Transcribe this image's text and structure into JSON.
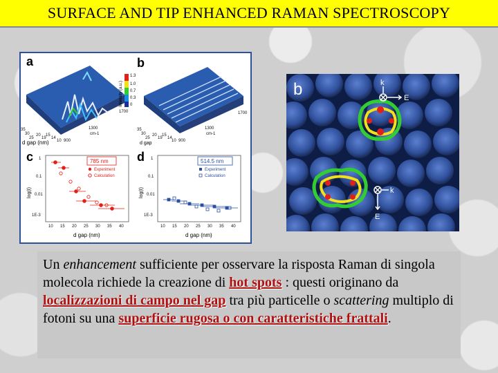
{
  "title": "SURFACE AND TIP ENHANCED RAMAN SPECTROSCOPY",
  "left_figure": {
    "panel_a": "a",
    "panel_b": "b",
    "panel_c": "c",
    "panel_d": "d",
    "colorbar_label": "Intensity (a.u.)",
    "colorbar_ticks": [
      "1.3",
      "1.0",
      "0.7",
      "0.3",
      "0"
    ],
    "surface_x_ticks_a": [
      "35",
      "30",
      "25",
      "20",
      "19",
      "15",
      "14",
      "10",
      "900"
    ],
    "surface_y_ticks_a": [
      "1700",
      "1300"
    ],
    "surface_unit_a": "cm-1",
    "surface_dgap_a": "d gap (nm)",
    "surface_x_ticks_b": [
      "35",
      "30",
      "25",
      "20",
      "19",
      "15",
      "14",
      "10",
      "900"
    ],
    "surface_y_ticks_b": [
      "1700",
      "1300"
    ],
    "surface_unit_b": "cm-1",
    "surface_dgap_b": "d gap",
    "plot_c": {
      "wavelength": "785 nm",
      "legend": [
        "Experiment",
        "Calculation"
      ],
      "ylabel": "log(I)",
      "xlabel": "d gap (nm)",
      "yticks": [
        "1",
        "0.1",
        "0.01",
        "1E-3"
      ],
      "xticks": [
        "10",
        "15",
        "20",
        "25",
        "30",
        "35",
        "40"
      ]
    },
    "plot_d": {
      "wavelength": "514.5 nm",
      "legend": [
        "Experiment",
        "Calculation"
      ],
      "ylabel": "log(I)",
      "xlabel": "d gap (nm)",
      "yticks": [
        "1",
        "0.1",
        "0.01",
        "1E-3"
      ],
      "xticks": [
        "10",
        "15",
        "20",
        "25",
        "30",
        "35",
        "40"
      ]
    }
  },
  "right_figure": {
    "panel": "b",
    "k_label_top": "k",
    "e_label_top": "E",
    "k_label_bottom": "k",
    "e_label_bottom": "E"
  },
  "caption": {
    "p1": "Un ",
    "p2": "enhancement",
    "p3": " sufficiente per osservare la risposta Raman di singola molecola richiede la creazione di ",
    "hl1": "hot spots",
    "p4": " : questi originano da ",
    "hl2": "localizzazioni di campo nel gap",
    "p5": " tra più particelle o ",
    "p6": "scattering",
    "p7": " multiplo di fotoni su una ",
    "hl3": "superficie rugosa o con caratteristiche frattali",
    "p8": "."
  }
}
